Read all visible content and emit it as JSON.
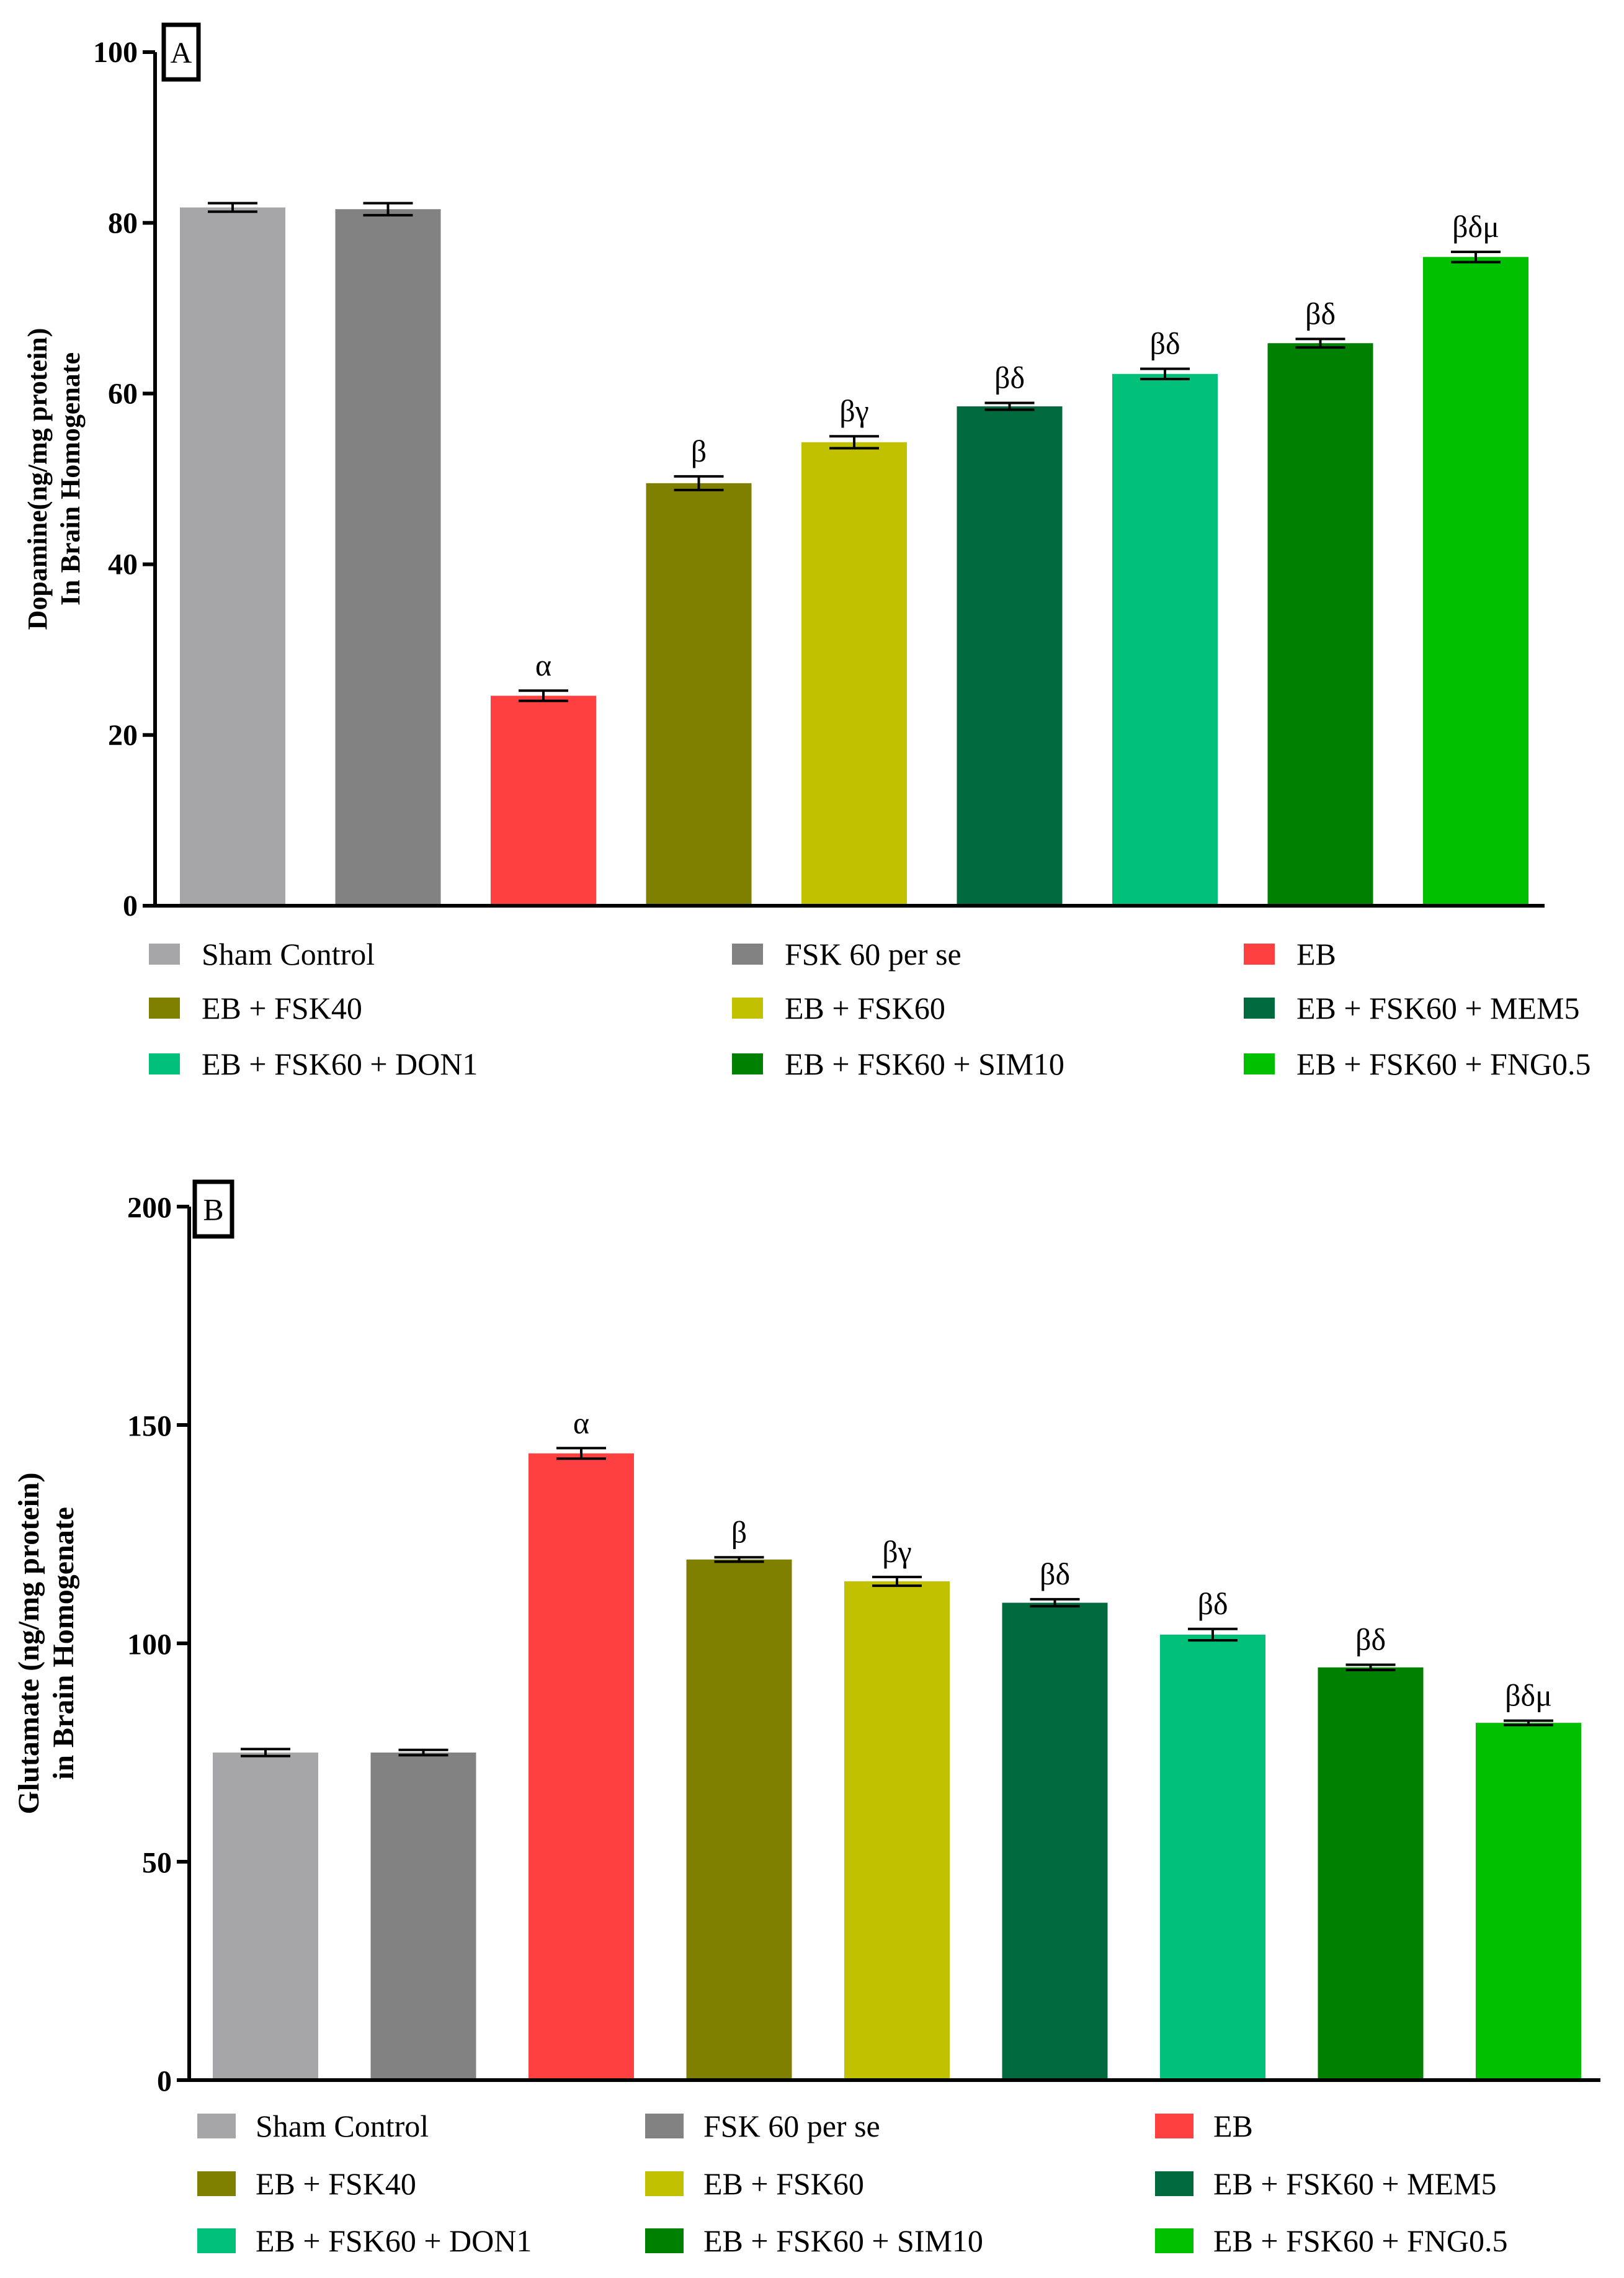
{
  "chart_data": [
    {
      "type": "bar",
      "panel": "A",
      "ylabel": [
        "Dopamine(ng/mg protein)",
        "In Brain  Homogenate"
      ],
      "ylim": [
        0,
        100
      ],
      "yticks": [
        0,
        20,
        40,
        60,
        80,
        100
      ],
      "categories": [
        "Sham Control",
        "FSK 60 per se",
        "EB",
        "EB + FSK40",
        "EB + FSK60",
        "EB + FSK60 + MEM5",
        "EB + FSK60 + DON1",
        "EB + FSK60 + SIM10",
        "EB + FSK60 + FNG0.5"
      ],
      "values": [
        81.8,
        81.6,
        24.6,
        49.5,
        54.3,
        58.5,
        62.3,
        65.9,
        76.0
      ],
      "errors": [
        0.5,
        0.7,
        0.6,
        0.8,
        0.7,
        0.4,
        0.6,
        0.5,
        0.6
      ],
      "annotations": [
        "",
        "",
        "α",
        "β",
        "βγ",
        "βδ",
        "βδ",
        "βδ",
        "βδμ"
      ],
      "colors": [
        "#a6a6a8",
        "#828282",
        "#ff4040",
        "#808000",
        "#c1c100",
        "#00693e",
        "#00c07a",
        "#008000",
        "#00c000"
      ],
      "legend": [
        {
          "label": "Sham Control",
          "color": "#a6a6a8"
        },
        {
          "label": "FSK 60 per se",
          "color": "#828282"
        },
        {
          "label": "EB",
          "color": "#ff4040"
        },
        {
          "label": "EB + FSK40",
          "color": "#808000"
        },
        {
          "label": "EB + FSK60",
          "color": "#c1c100"
        },
        {
          "label": "EB + FSK60 + MEM5",
          "color": "#00693e"
        },
        {
          "label": "EB + FSK60 + DON1",
          "color": "#00c07a"
        },
        {
          "label": "EB + FSK60 + SIM10",
          "color": "#008000"
        },
        {
          "label": "EB + FSK60 + FNG0.5",
          "color": "#00c000"
        }
      ]
    },
    {
      "type": "bar",
      "panel": "B",
      "ylabel": [
        "Glutamate (ng/mg protein)",
        "in Brain  Homogenate"
      ],
      "ylim": [
        0,
        200
      ],
      "yticks": [
        0,
        50,
        100,
        150,
        200
      ],
      "categories": [
        "Sham Control",
        "FSK 60 per se",
        "EB",
        "EB + FSK40",
        "EB + FSK60",
        "EB + FSK60 + MEM5",
        "EB + FSK60 + DON1",
        "EB + FSK60 + SIM10",
        "EB + FSK60 + FNG0.5"
      ],
      "values": [
        75.0,
        75.0,
        143.5,
        119.2,
        114.2,
        109.3,
        102.0,
        94.5,
        81.8
      ],
      "errors": [
        0.8,
        0.6,
        1.2,
        0.5,
        1.0,
        0.8,
        1.3,
        0.6,
        0.5
      ],
      "annotations": [
        "",
        "",
        "α",
        "β",
        "βγ",
        "βδ",
        "βδ",
        "βδ",
        "βδμ"
      ],
      "colors": [
        "#a6a6a8",
        "#828282",
        "#ff4040",
        "#808000",
        "#c1c100",
        "#00693e",
        "#00c07a",
        "#008000",
        "#00c000"
      ],
      "legend": [
        {
          "label": "Sham Control",
          "color": "#a6a6a8"
        },
        {
          "label": "FSK 60 per se",
          "color": "#828282"
        },
        {
          "label": "EB",
          "color": "#ff4040"
        },
        {
          "label": "EB + FSK40",
          "color": "#808000"
        },
        {
          "label": "EB + FSK60",
          "color": "#c1c100"
        },
        {
          "label": "EB + FSK60 + MEM5",
          "color": "#00693e"
        },
        {
          "label": "EB + FSK60 + DON1",
          "color": "#00c07a"
        },
        {
          "label": "EB + FSK60 + SIM10",
          "color": "#008000"
        },
        {
          "label": "EB + FSK60 + FNG0.5",
          "color": "#00c000"
        }
      ]
    }
  ]
}
